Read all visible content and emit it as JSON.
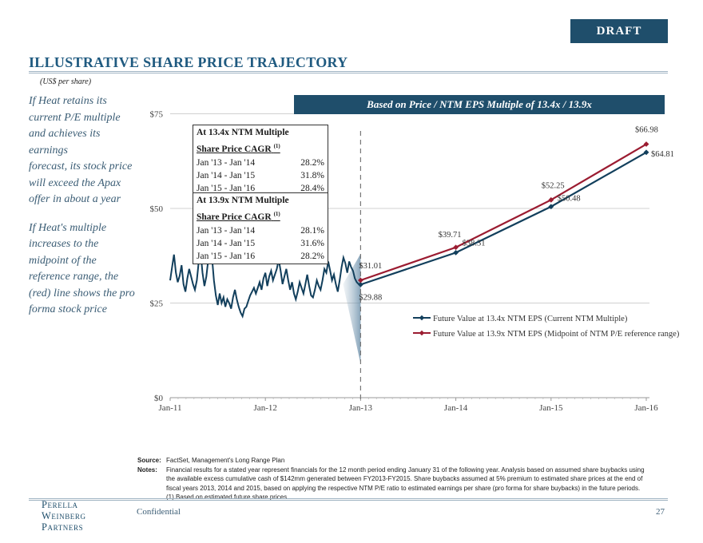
{
  "header": {
    "draft_label": "DRAFT",
    "title": "ILLUSTRATIVE SHARE PRICE TRAJECTORY",
    "units": "(US$ per share)"
  },
  "sidebar": {
    "para1_lines": [
      "If  Heat retains its",
      "current P/E multiple",
      "and achieves its",
      "earnings",
      "forecast, its stock price",
      "will exceed the Apax",
      "offer in about a year"
    ],
    "para2_lines": [
      "If  Heat's multiple",
      "increases to the",
      "midpoint of  the",
      "reference range, the",
      "(red) line shows the pro",
      "forma stock price"
    ]
  },
  "banner": "Based on Price / NTM EPS Multiple of 13.4x / 13.9x",
  "tables": [
    {
      "header": "At 13.4x NTM Multiple",
      "subheader": "Share Price CAGR",
      "sup": "(1)",
      "rows": [
        {
          "period": "Jan '13 - Jan '14",
          "value": "28.2%"
        },
        {
          "period": "Jan '14 - Jan '15",
          "value": "31.8%"
        },
        {
          "period": "Jan '15 - Jan '16",
          "value": "28.4%"
        }
      ]
    },
    {
      "header": "At 13.9x NTM Multiple",
      "subheader": "Share Price CAGR",
      "sup": "(1)",
      "rows": [
        {
          "period": "Jan '13 - Jan '14",
          "value": "28.1%"
        },
        {
          "period": "Jan '14 - Jan '15",
          "value": "31.6%"
        },
        {
          "period": "Jan '15 - Jan '16",
          "value": "28.2%"
        }
      ]
    }
  ],
  "chart_data": {
    "type": "line",
    "x_ticks": [
      "Jan-11",
      "Jan-12",
      "Jan-13",
      "Jan-14",
      "Jan-15",
      "Jan-16"
    ],
    "y_ticks": [
      "$0",
      "$25",
      "$50",
      "$75"
    ],
    "ylim": [
      0,
      75
    ],
    "historical": {
      "color": "#123f5c",
      "x": [
        0,
        0.02,
        0.04,
        0.06,
        0.08,
        0.1,
        0.12,
        0.14,
        0.16,
        0.18,
        0.2,
        0.22,
        0.24,
        0.26,
        0.28,
        0.3,
        0.32,
        0.34,
        0.36,
        0.38,
        0.4,
        0.42,
        0.44,
        0.46,
        0.48,
        0.5,
        0.52,
        0.54,
        0.56,
        0.58,
        0.6,
        0.62,
        0.64,
        0.66,
        0.68,
        0.7,
        0.72,
        0.74,
        0.76,
        0.78,
        0.8,
        0.82,
        0.84,
        0.86,
        0.88,
        0.9,
        0.92,
        0.94,
        0.96,
        0.98,
        1.0,
        1.02,
        1.04,
        1.06,
        1.08,
        1.1,
        1.12,
        1.14,
        1.16,
        1.18,
        1.2,
        1.22,
        1.24,
        1.26,
        1.28,
        1.3,
        1.32,
        1.34,
        1.36,
        1.38,
        1.4,
        1.42,
        1.44,
        1.46,
        1.48,
        1.5,
        1.52,
        1.54,
        1.56,
        1.58,
        1.6,
        1.62,
        1.64,
        1.66,
        1.68,
        1.7,
        1.72,
        1.74,
        1.76,
        1.78,
        1.8,
        1.82,
        1.84,
        1.86,
        1.88,
        1.9,
        1.92,
        1.94,
        1.96,
        1.98
      ],
      "y": [
        31.0,
        34.5,
        37.8,
        33.0,
        30.5,
        32.2,
        35.0,
        30.0,
        28.0,
        31.5,
        34.0,
        32.0,
        30.0,
        28.5,
        31.0,
        36.0,
        38.5,
        33.0,
        29.5,
        32.0,
        36.5,
        40.5,
        37.0,
        31.0,
        27.0,
        24.5,
        27.5,
        25.0,
        26.5,
        24.0,
        26.0,
        25.0,
        23.5,
        26.5,
        28.5,
        26.0,
        24.0,
        22.5,
        21.5,
        23.5,
        24.0,
        25.5,
        27.0,
        28.0,
        29.0,
        27.5,
        29.0,
        30.5,
        28.5,
        31.5,
        33.0,
        29.5,
        32.0,
        33.5,
        31.0,
        32.5,
        34.0,
        36.5,
        33.5,
        30.0,
        32.0,
        34.0,
        31.0,
        28.5,
        30.5,
        27.5,
        26.0,
        28.0,
        30.5,
        29.0,
        27.5,
        30.0,
        32.5,
        29.5,
        27.0,
        26.5,
        28.5,
        31.0,
        29.5,
        28.5,
        31.0,
        34.0,
        33.0,
        36.0,
        33.5,
        31.0,
        32.5,
        30.0,
        28.0,
        31.0,
        34.5,
        37.0,
        35.5,
        33.0,
        36.0,
        34.5,
        33.5,
        31.5,
        30.5,
        30.0
      ]
    },
    "series": [
      {
        "name": "Future Value at 13.4x NTM EPS (Current NTM Multiple)",
        "color": "#123f5c",
        "marker": "diamond",
        "x": [
          "Jan-13",
          "Jan-14",
          "Jan-15",
          "Jan-16"
        ],
        "values": [
          29.88,
          38.31,
          50.48,
          64.81
        ],
        "labels": [
          "$29.88",
          "$38.31",
          "$50.48",
          "$64.81"
        ]
      },
      {
        "name": "Future Value at 13.9x NTM EPS (Midpoint of NTM P/E reference range)",
        "color": "#9b1c31",
        "marker": "diamond",
        "x": [
          "Jan-13",
          "Jan-14",
          "Jan-15",
          "Jan-16"
        ],
        "values": [
          31.01,
          39.71,
          52.25,
          66.98
        ],
        "labels": [
          "$31.01",
          "$39.71",
          "$52.25",
          "$66.98"
        ]
      }
    ]
  },
  "footnotes": {
    "source_key": "Source:",
    "source_text": "FactSet, Management's Long Range Plan",
    "notes_key": "Notes:",
    "notes_lines": [
      "Financial results for a stated year represent financials for the 12 month period ending January 31 of the following year. Analysis based on assumed share buybacks using",
      "the available excess cumulative cash of $142mm generated between FY2013-FY2015. Share buybacks assumed at 5% premium to estimated share prices at the end of",
      "fiscal years 2013, 2014 and 2015, based on applying the respective NTM P/E ratio to estimated earnings per share (pro forma for share buybacks) in the future periods.",
      "(1) Based on estimated future share prices"
    ]
  },
  "footer": {
    "logo_lines": [
      "Perella",
      "Weinberg",
      "Partners"
    ],
    "confidential": "Confidential",
    "page_number": "27"
  }
}
